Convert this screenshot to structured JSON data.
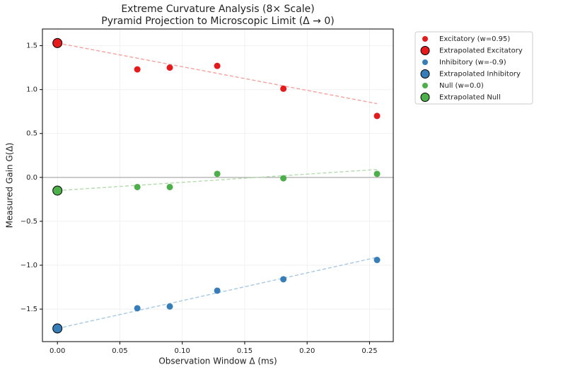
{
  "chart_data": {
    "type": "scatter",
    "title": "Extreme Curvature Analysis (8×  Scale)",
    "subtitle": "Pyramid Projection to Microscopic Limit (Δ → 0)",
    "x_label": "Observation Window Δ (ms)",
    "y_label": "Measured Gain G(Δ)",
    "xlim": [
      -0.012,
      0.269
    ],
    "ylim": [
      -1.87,
      1.69
    ],
    "xticks": [
      {
        "value": 0,
        "label": "0.00"
      },
      {
        "value": 0.05,
        "label": "0.05"
      },
      {
        "value": 0.1,
        "label": "0.10"
      },
      {
        "value": 0.15,
        "label": "0.15"
      },
      {
        "value": 0.2,
        "label": "0.20"
      },
      {
        "value": 0.25,
        "label": "0.25"
      }
    ],
    "yticks": [
      {
        "value": -1.5,
        "label": "−1.5"
      },
      {
        "value": -1,
        "label": "−1.0"
      },
      {
        "value": -0.5,
        "label": "−0.5"
      },
      {
        "value": 0,
        "label": "0.0"
      },
      {
        "value": 0.5,
        "label": "0.5"
      },
      {
        "value": 1,
        "label": "1.0"
      },
      {
        "value": 1.5,
        "label": "1.5"
      }
    ],
    "grid": true,
    "hline": 0,
    "legend": "outside-right",
    "series": [
      {
        "name": "Excitatory (w=0.95)",
        "color": "#e41a1c",
        "marker": "dot",
        "x": [
          0.064,
          0.09,
          0.128,
          0.181,
          0.256
        ],
        "values": [
          1.23,
          1.25,
          1.27,
          1.01,
          0.7
        ]
      },
      {
        "name": "Extrapolated Excitatory",
        "color": "#e41a1c",
        "marker": "large",
        "x": [
          0
        ],
        "values": [
          1.53
        ]
      },
      {
        "name": "Inhibitory (w=-0.9)",
        "color": "#377eb8",
        "marker": "dot",
        "x": [
          0.064,
          0.09,
          0.128,
          0.181,
          0.256
        ],
        "values": [
          -1.49,
          -1.47,
          -1.29,
          -1.16,
          -0.94
        ]
      },
      {
        "name": "Extrapolated Inhibitory",
        "color": "#377eb8",
        "marker": "large",
        "x": [
          0
        ],
        "values": [
          -1.72
        ]
      },
      {
        "name": "Null (w=0.0)",
        "color": "#4daf4a",
        "marker": "dot",
        "x": [
          0.064,
          0.09,
          0.128,
          0.181,
          0.256
        ],
        "values": [
          -0.11,
          -0.11,
          0.04,
          -0.01,
          0.04
        ]
      },
      {
        "name": "Extrapolated Null",
        "color": "#4daf4a",
        "marker": "large",
        "x": [
          0
        ],
        "values": [
          -0.15
        ]
      }
    ],
    "fits": [
      {
        "color": "#f4a09e",
        "x": [
          0,
          0.256
        ],
        "values": [
          1.53,
          0.84
        ]
      },
      {
        "color": "#a6c8e4",
        "x": [
          0,
          0.256
        ],
        "values": [
          -1.72,
          -0.91
        ]
      },
      {
        "color": "#b5dcae",
        "x": [
          0,
          0.256
        ],
        "values": [
          -0.15,
          0.09
        ]
      }
    ]
  }
}
